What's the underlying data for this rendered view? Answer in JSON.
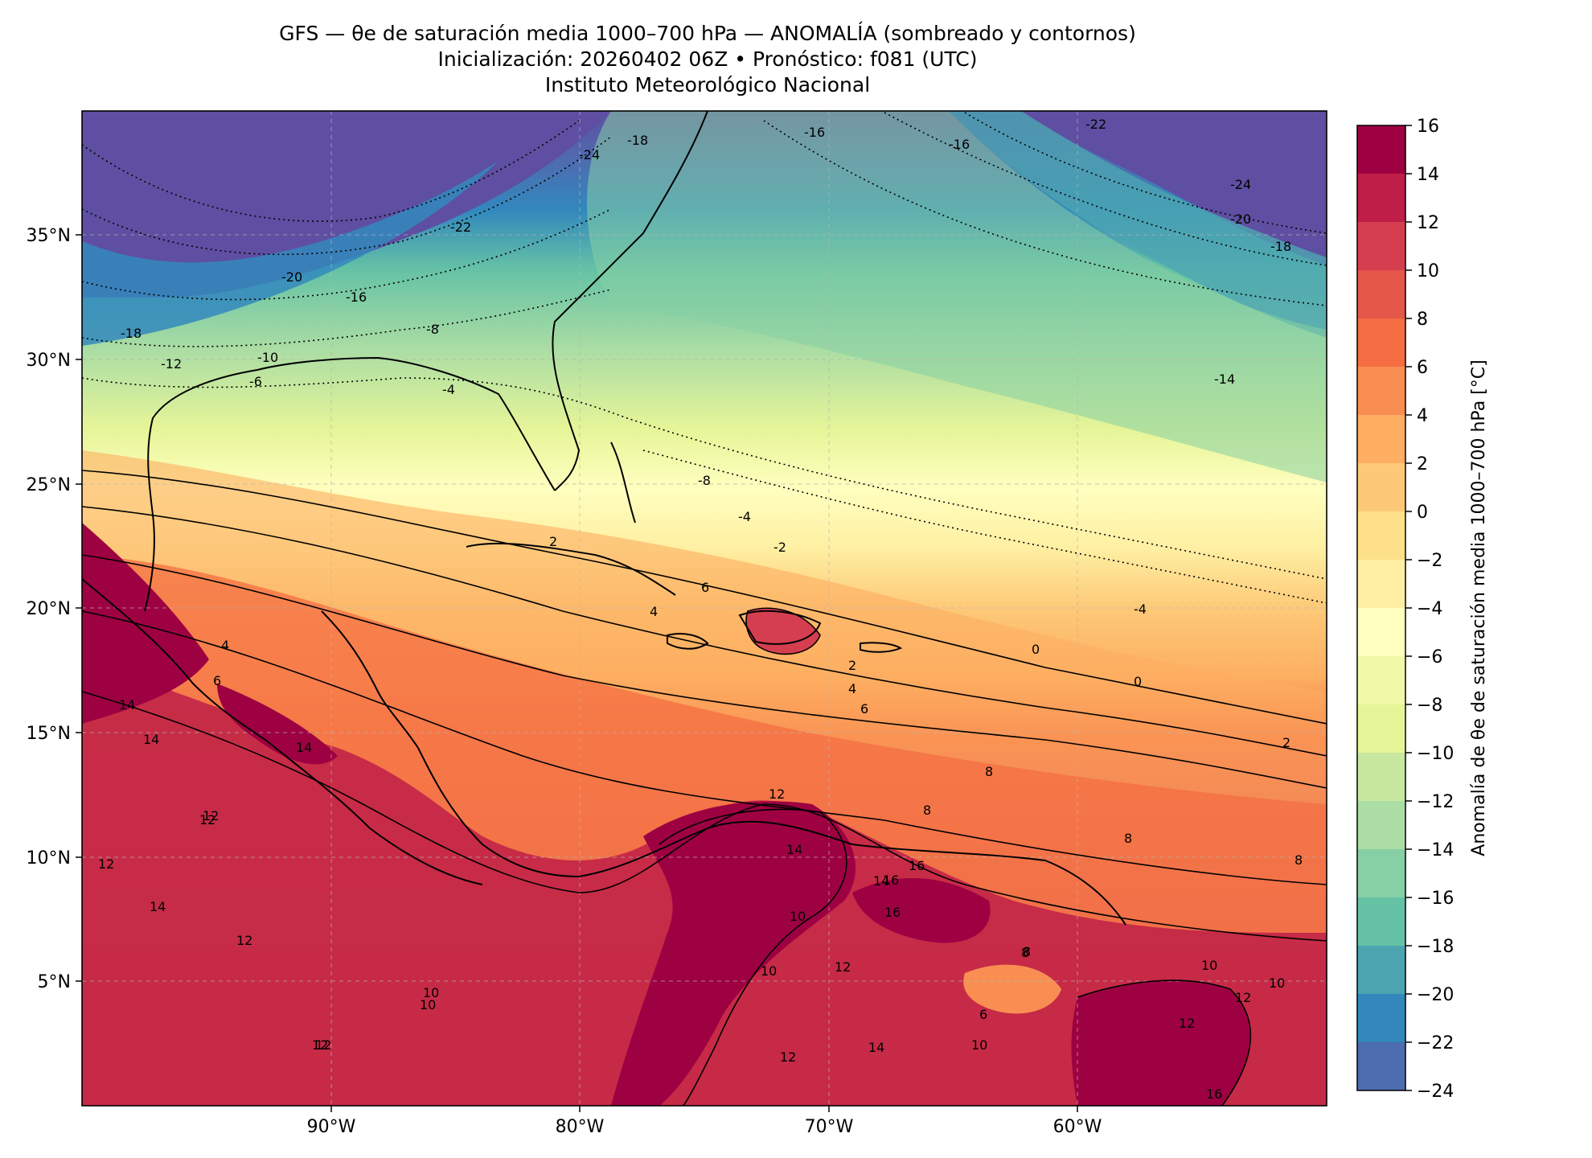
{
  "title": {
    "line1": "GFS — θe de saturación media 1000–700 hPa — ANOMALÍA (sombreado y contornos)",
    "line2": "Inicialización: 20260402 06Z   •   Pronóstico: f081 (UTC)",
    "line3": "Instituto Meteorológico Nacional"
  },
  "map": {
    "lon_range": [
      -100,
      -50
    ],
    "lat_range": [
      0,
      40
    ],
    "lon_ticks": [
      "90°W",
      "80°W",
      "70°W",
      "60°W"
    ],
    "lat_ticks": [
      "35°N",
      "30°N",
      "25°N",
      "20°N",
      "15°N",
      "10°N",
      "5°N"
    ],
    "gridlines": true
  },
  "colorbar": {
    "label": "Anomalía de θe de saturación media 1000–700 hPa [°C]",
    "ticks": [
      "16",
      "14",
      "12",
      "10",
      "8",
      "6",
      "4",
      "2",
      "0",
      "−2",
      "−4",
      "−6",
      "−8",
      "−10",
      "−12",
      "−14",
      "−16",
      "−18",
      "−20",
      "−22",
      "−24"
    ],
    "colors": [
      "#9e0142",
      "#be1e48",
      "#d53e4f",
      "#e55749",
      "#f46d43",
      "#f98e52",
      "#fdae61",
      "#fdc978",
      "#fee08b",
      "#feefa2",
      "#ffffbf",
      "#f1f9a9",
      "#e6f598",
      "#c7e89e",
      "#abdda4",
      "#87cfa4",
      "#66c2a5",
      "#4ca5b1",
      "#3288bd",
      "#4e6cb0",
      "#5e4fa2"
    ]
  },
  "contour_labels": [
    "-24",
    "-18",
    "-22",
    "-16",
    "-20",
    "-16",
    "-8",
    "-18",
    "-12",
    "-10",
    "-6",
    "-4",
    "-22",
    "-24",
    "-20",
    "-18",
    "-16",
    "-14",
    "-8",
    "-4",
    "-2",
    "2",
    "-4",
    "0",
    "0",
    "2",
    "4",
    "6",
    "2",
    "8",
    "8",
    "8",
    "8",
    "12",
    "14",
    "16",
    "12",
    "10",
    "12",
    "14",
    "16",
    "10",
    "12",
    "14",
    "16",
    "8",
    "6",
    "10",
    "12",
    "10",
    "12",
    "10",
    "12",
    "14",
    "10",
    "12",
    "16",
    "8",
    "6",
    "4",
    "4",
    "6",
    "14",
    "12",
    "14",
    "12",
    "12",
    "14",
    "10"
  ]
}
